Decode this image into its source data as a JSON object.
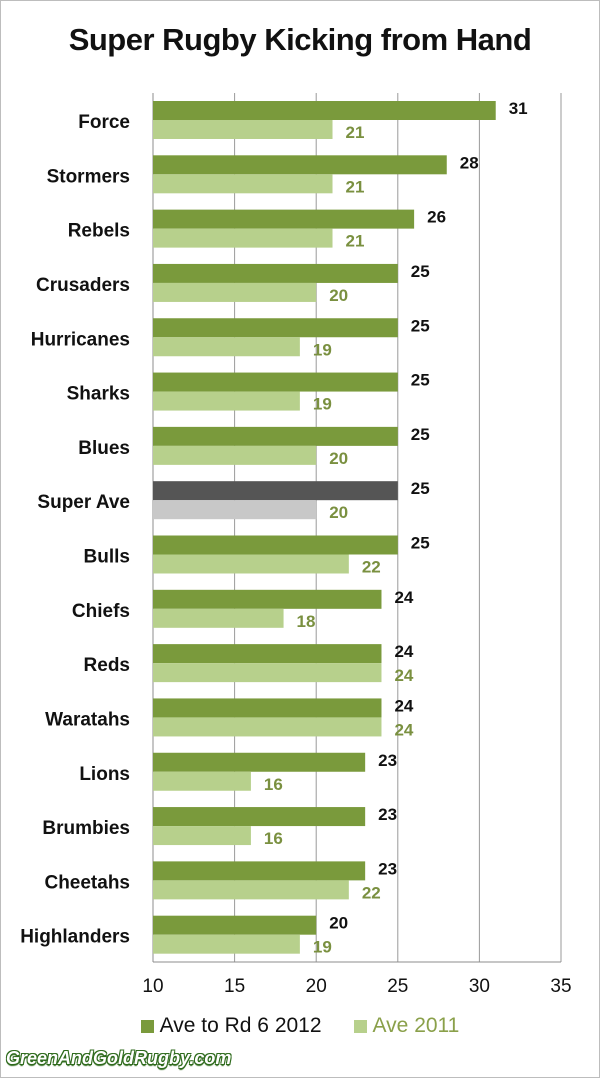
{
  "chart_data": {
    "type": "bar",
    "orientation": "horizontal",
    "title": "Super Rugby Kicking from Hand",
    "categories": [
      "Force",
      "Stormers",
      "Rebels",
      "Crusaders",
      "Hurricanes",
      "Sharks",
      "Blues",
      "Super Ave",
      "Bulls",
      "Chiefs",
      "Reds",
      "Waratahs",
      "Lions",
      "Brumbies",
      "Cheetahs",
      "Highlanders"
    ],
    "series": [
      {
        "name": "Ave to Rd 6 2012",
        "values": [
          31,
          28,
          26,
          25,
          25,
          25,
          25,
          25,
          25,
          24,
          24,
          24,
          23,
          23,
          23,
          20
        ],
        "color": "#7a9a3c",
        "highlight_color": "#555555",
        "label_color": "#111111"
      },
      {
        "name": "Ave 2011",
        "values": [
          21,
          21,
          21,
          20,
          19,
          19,
          20,
          20,
          22,
          18,
          24,
          24,
          16,
          16,
          22,
          19
        ],
        "color": "#b7d08c",
        "highlight_color": "#c8c8c8",
        "label_color": "#7a9040"
      }
    ],
    "highlight_category": "Super Ave",
    "xlim": [
      10,
      35
    ],
    "xticks": [
      10,
      15,
      20,
      25,
      30,
      35
    ],
    "grid": true,
    "legend_position": "bottom"
  },
  "watermark": "GreenAndGoldRugby.com"
}
